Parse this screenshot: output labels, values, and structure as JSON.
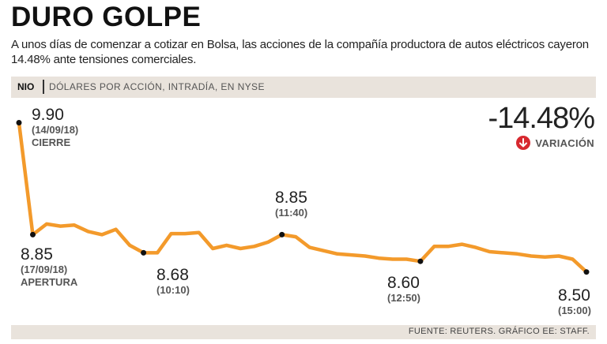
{
  "header": {
    "title": "DURO GOLPE",
    "subtitle": "A unos días de comenzar a cotizar en Bolsa, las acciones de la compañía productora de autos eléctricos cayeron 14.48% ante tensiones comerciales."
  },
  "band": {
    "ticker": "NIO",
    "description": "DÓLARES POR ACCIÓN, INTRADÍA, EN NYSE"
  },
  "summary": {
    "change": "-14.48%",
    "change_label": "VARIACIÓN"
  },
  "footer": {
    "source": "FUENTE: REUTERS. GRÁFICO EE: STAFF."
  },
  "annotations": [
    {
      "value": "9.90",
      "line1": "(14/09/18)",
      "line2": "CIERRE"
    },
    {
      "value": "8.85",
      "line1": "(17/09/18)",
      "line2": "APERTURA"
    },
    {
      "value": "8.68",
      "line1": "(10:10)",
      "line2": ""
    },
    {
      "value": "8.85",
      "line1": "(11:40)",
      "line2": ""
    },
    {
      "value": "8.60",
      "line1": "(12:50)",
      "line2": ""
    },
    {
      "value": "8.50",
      "line1": "(15:00)",
      "line2": ""
    }
  ],
  "colors": {
    "line": "#f39a2b",
    "marker": "#111111",
    "down": "#d7282f"
  },
  "chart_data": {
    "type": "line",
    "title": "DURO GOLPE",
    "ylabel": "Dólares por acción",
    "ylim": [
      8.35,
      10.0
    ],
    "values": [
      9.9,
      8.85,
      8.95,
      8.93,
      8.94,
      8.88,
      8.85,
      8.9,
      8.75,
      8.68,
      8.68,
      8.86,
      8.86,
      8.87,
      8.72,
      8.75,
      8.72,
      8.74,
      8.78,
      8.85,
      8.83,
      8.73,
      8.7,
      8.67,
      8.66,
      8.65,
      8.63,
      8.62,
      8.62,
      8.6,
      8.74,
      8.74,
      8.76,
      8.73,
      8.69,
      8.68,
      8.67,
      8.65,
      8.64,
      8.65,
      8.62,
      8.5
    ],
    "highlights": [
      {
        "index": 0,
        "value": 9.9,
        "label": "(14/09/18) CIERRE"
      },
      {
        "index": 1,
        "value": 8.85,
        "label": "(17/09/18) APERTURA"
      },
      {
        "index": 9,
        "value": 8.68,
        "label": "(10:10)"
      },
      {
        "index": 19,
        "value": 8.85,
        "label": "(11:40)"
      },
      {
        "index": 29,
        "value": 8.6,
        "label": "(12:50)"
      },
      {
        "index": 41,
        "value": 8.5,
        "label": "(15:00)"
      }
    ]
  }
}
